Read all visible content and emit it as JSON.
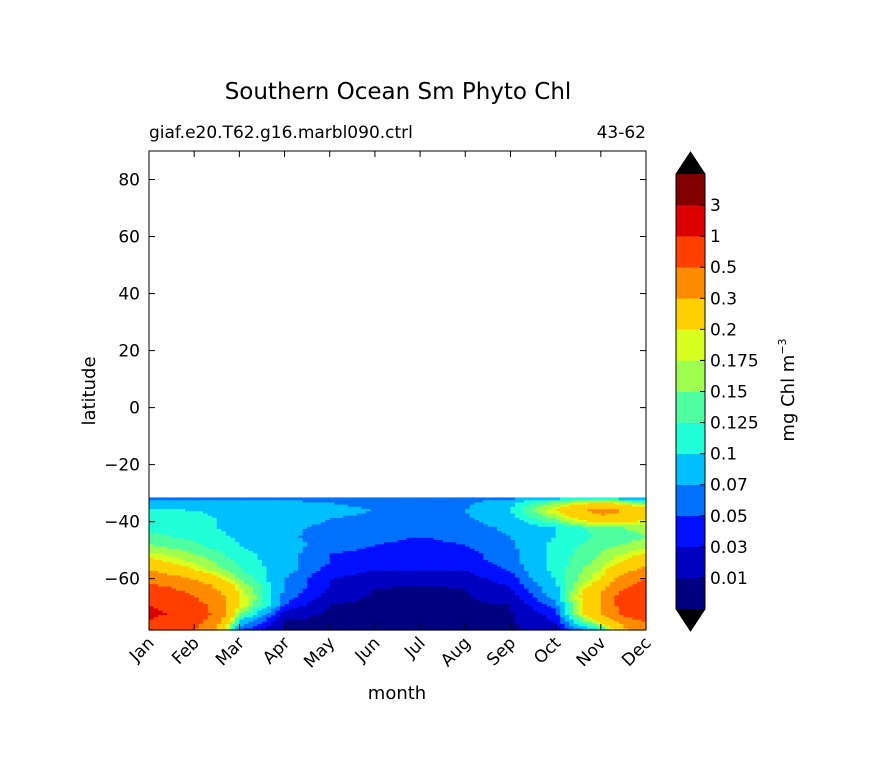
{
  "chart_data": {
    "type": "heatmap",
    "title": "Southern Ocean Sm Phyto Chl",
    "subtitle_left": "giaf.e20.T62.g16.marbl090.ctrl",
    "subtitle_right": "43-62",
    "xlabel": "month",
    "ylabel": "latitude",
    "x_categories": [
      "Jan",
      "Feb",
      "Mar",
      "Apr",
      "May",
      "Jun",
      "Jul",
      "Aug",
      "Sep",
      "Oct",
      "Nov",
      "Dec"
    ],
    "ylim": [
      -78,
      90
    ],
    "yticks": [
      80,
      60,
      40,
      20,
      0,
      -20,
      -40,
      -60
    ],
    "ytick_labels": [
      "80",
      "60",
      "40",
      "20",
      "0",
      "−20",
      "−40",
      "−60"
    ],
    "data_lat_range": [
      -78,
      -31.5
    ],
    "colorbar": {
      "label": "mg Chl m",
      "label_exponent": "−3",
      "extend": "both",
      "levels": [
        0.01,
        0.03,
        0.05,
        0.07,
        0.1,
        0.125,
        0.15,
        0.175,
        0.2,
        0.3,
        0.5,
        1,
        3
      ],
      "tick_labels": [
        "0.01",
        "0.03",
        "0.05",
        "0.07",
        "0.1",
        "0.125",
        "0.15",
        "0.175",
        "0.2",
        "0.3",
        "0.5",
        "1",
        "3"
      ],
      "colors": [
        "#000080",
        "#0000c0",
        "#0010ff",
        "#0070ff",
        "#00bfff",
        "#20ffd8",
        "#50ff9f",
        "#9fff50",
        "#d8ff20",
        "#ffd000",
        "#ff8c00",
        "#ff4000",
        "#dd0000",
        "#800000"
      ]
    },
    "latitudes": [
      -78,
      -75,
      -72,
      -69,
      -66,
      -63,
      -60,
      -57,
      -54,
      -51,
      -48,
      -45,
      -42,
      -39,
      -36,
      -33,
      -31.5
    ],
    "months_index": [
      0,
      1,
      2,
      3,
      4,
      5,
      6,
      7,
      8,
      9,
      10,
      11
    ],
    "values": [
      [
        0.6,
        0.5,
        0.05,
        0.008,
        0.007,
        0.006,
        0.006,
        0.006,
        0.006,
        0.02,
        0.09,
        0.4
      ],
      [
        0.9,
        0.6,
        0.09,
        0.008,
        0.006,
        0.006,
        0.006,
        0.006,
        0.007,
        0.03,
        0.2,
        0.5
      ],
      [
        1.2,
        0.7,
        0.15,
        0.02,
        0.007,
        0.006,
        0.006,
        0.006,
        0.008,
        0.04,
        0.3,
        0.8
      ],
      [
        1.0,
        0.6,
        0.2,
        0.05,
        0.009,
        0.006,
        0.006,
        0.007,
        0.01,
        0.06,
        0.3,
        0.9
      ],
      [
        0.8,
        0.5,
        0.2,
        0.06,
        0.02,
        0.008,
        0.008,
        0.009,
        0.02,
        0.08,
        0.3,
        0.9
      ],
      [
        0.6,
        0.4,
        0.18,
        0.07,
        0.03,
        0.01,
        0.009,
        0.01,
        0.03,
        0.09,
        0.25,
        0.7
      ],
      [
        0.4,
        0.3,
        0.15,
        0.07,
        0.03,
        0.02,
        0.02,
        0.02,
        0.04,
        0.1,
        0.2,
        0.5
      ],
      [
        0.3,
        0.2,
        0.13,
        0.08,
        0.04,
        0.03,
        0.03,
        0.03,
        0.05,
        0.11,
        0.18,
        0.35
      ],
      [
        0.22,
        0.17,
        0.12,
        0.08,
        0.05,
        0.04,
        0.04,
        0.04,
        0.06,
        0.11,
        0.16,
        0.25
      ],
      [
        0.18,
        0.15,
        0.11,
        0.08,
        0.05,
        0.045,
        0.04,
        0.045,
        0.06,
        0.11,
        0.15,
        0.2
      ],
      [
        0.15,
        0.13,
        0.1,
        0.08,
        0.06,
        0.05,
        0.045,
        0.05,
        0.065,
        0.11,
        0.14,
        0.16
      ],
      [
        0.13,
        0.12,
        0.095,
        0.075,
        0.06,
        0.055,
        0.05,
        0.055,
        0.07,
        0.1,
        0.13,
        0.15
      ],
      [
        0.12,
        0.11,
        0.09,
        0.075,
        0.065,
        0.06,
        0.055,
        0.06,
        0.075,
        0.1,
        0.14,
        0.16
      ],
      [
        0.12,
        0.11,
        0.09,
        0.08,
        0.07,
        0.065,
        0.06,
        0.065,
        0.09,
        0.15,
        0.25,
        0.2
      ],
      [
        0.11,
        0.1,
        0.09,
        0.08,
        0.075,
        0.07,
        0.065,
        0.07,
        0.1,
        0.2,
        0.35,
        0.25
      ],
      [
        0.08,
        0.08,
        0.08,
        0.075,
        0.07,
        0.065,
        0.06,
        0.065,
        0.09,
        0.15,
        0.2,
        0.12
      ],
      [
        0.05,
        0.05,
        0.06,
        0.06,
        0.06,
        0.05,
        0.05,
        0.05,
        0.06,
        0.08,
        0.09,
        0.06
      ]
    ]
  }
}
